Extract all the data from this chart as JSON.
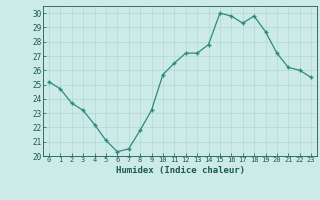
{
  "x": [
    0,
    1,
    2,
    3,
    4,
    5,
    6,
    7,
    8,
    9,
    10,
    11,
    12,
    13,
    14,
    15,
    16,
    17,
    18,
    19,
    20,
    21,
    22,
    23
  ],
  "y": [
    25.2,
    24.7,
    23.7,
    23.2,
    22.2,
    21.1,
    20.3,
    20.5,
    21.8,
    23.2,
    25.7,
    26.5,
    27.2,
    27.2,
    27.8,
    30.0,
    29.8,
    29.3,
    29.8,
    28.7,
    27.2,
    26.2,
    26.0,
    25.5
  ],
  "title": "",
  "xlabel": "Humidex (Indice chaleur)",
  "ylabel": "",
  "xlim": [
    -0.5,
    23.5
  ],
  "ylim": [
    20,
    30.5
  ],
  "yticks": [
    20,
    21,
    22,
    23,
    24,
    25,
    26,
    27,
    28,
    29,
    30
  ],
  "xticks": [
    0,
    1,
    2,
    3,
    4,
    5,
    6,
    7,
    8,
    9,
    10,
    11,
    12,
    13,
    14,
    15,
    16,
    17,
    18,
    19,
    20,
    21,
    22,
    23
  ],
  "line_color": "#2e8b78",
  "marker_color": "#2e8b78",
  "bg_color": "#cceae8",
  "grid_color": "#b0d8d4",
  "tick_label_color": "#1a5a50",
  "xlabel_color": "#1a5a50"
}
